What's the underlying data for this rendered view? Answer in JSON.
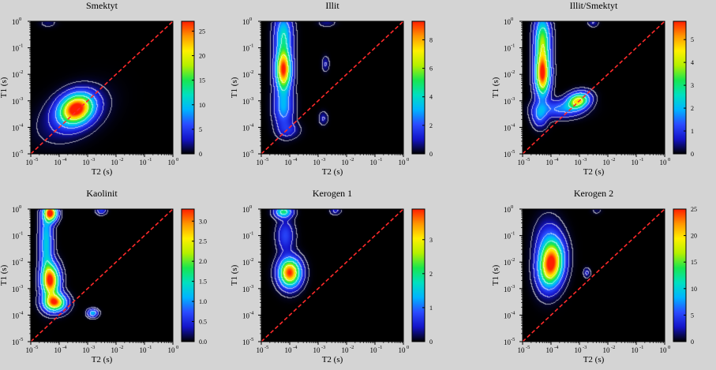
{
  "chart_data": [
    {
      "type": "heatmap",
      "title": "Smektyt",
      "xlabel": "T2 (s)",
      "ylabel": "T1 (s)",
      "x_scale": "log",
      "y_scale": "log",
      "xlim": [
        1e-05,
        1
      ],
      "ylim": [
        1e-05,
        1
      ],
      "x_ticks": [
        "10",
        "10",
        "10",
        "10",
        "10",
        "10"
      ],
      "x_tick_exponents": [
        "-5",
        "-4",
        "-3",
        "-2",
        "-1",
        "0"
      ],
      "y_ticks": [
        "10",
        "10",
        "10",
        "10",
        "10",
        "10"
      ],
      "y_tick_exponents": [
        "-5",
        "-4",
        "-3",
        "-2",
        "-1",
        "0"
      ],
      "colorbar_range": [
        0,
        27
      ],
      "colorbar_ticks": [
        "0",
        "5",
        "10",
        "15",
        "20",
        "25"
      ],
      "colorbar_tick_values": [
        0,
        5,
        10,
        15,
        20,
        25
      ],
      "diagonal_line": "T1 = T2",
      "peaks": [
        {
          "t2": 0.0004,
          "t1": 0.0005,
          "amplitude": 27,
          "spread_t2_decades": 0.38,
          "spread_t1_decades": 0.36,
          "tilt": 0.2
        },
        {
          "t2": 0.0003,
          "t1": 0.0003,
          "amplitude": 4,
          "spread_t2_decades": 0.65,
          "spread_t1_decades": 0.55,
          "tilt": 0.4
        },
        {
          "t2": 4e-05,
          "t1": 0.9,
          "amplitude": 1.5,
          "spread_t2_decades": 0.2,
          "spread_t1_decades": 0.12,
          "tilt": 0
        }
      ]
    },
    {
      "type": "heatmap",
      "title": "Illit",
      "xlabel": "T2 (s)",
      "ylabel": "T1 (s)",
      "x_scale": "log",
      "y_scale": "log",
      "xlim": [
        1e-05,
        1
      ],
      "ylim": [
        1e-05,
        1
      ],
      "x_ticks": [
        "10",
        "10",
        "10",
        "10",
        "10",
        "10"
      ],
      "x_tick_exponents": [
        "-5",
        "-4",
        "-3",
        "-2",
        "-1",
        "0"
      ],
      "y_ticks": [
        "10",
        "10",
        "10",
        "10",
        "10",
        "10"
      ],
      "y_tick_exponents": [
        "-5",
        "-4",
        "-3",
        "-2",
        "-1",
        "0"
      ],
      "colorbar_range": [
        0,
        9.3
      ],
      "colorbar_ticks": [
        "0",
        "2",
        "4",
        "6",
        "8"
      ],
      "colorbar_tick_values": [
        0,
        2,
        4,
        6,
        8
      ],
      "diagonal_line": "T1 = T2",
      "peaks": [
        {
          "t2": 6e-05,
          "t1": 0.015,
          "amplitude": 9.3,
          "spread_t2_decades": 0.18,
          "spread_t1_decades": 0.5,
          "tilt": 0
        },
        {
          "t2": 6e-05,
          "t1": 0.3,
          "amplitude": 4,
          "spread_t2_decades": 0.2,
          "spread_t1_decades": 0.55,
          "tilt": 0
        },
        {
          "t2": 6e-05,
          "t1": 0.0006,
          "amplitude": 3,
          "spread_t2_decades": 0.22,
          "spread_t1_decades": 0.5,
          "tilt": 0
        },
        {
          "t2": 9e-05,
          "t1": 8e-05,
          "amplitude": 1.2,
          "spread_t2_decades": 0.25,
          "spread_t1_decades": 0.2,
          "tilt": 0
        },
        {
          "t2": 0.0018,
          "t1": 0.025,
          "amplitude": 1,
          "spread_t2_decades": 0.08,
          "spread_t1_decades": 0.18,
          "tilt": 0
        },
        {
          "t2": 0.0015,
          "t1": 0.00022,
          "amplitude": 1,
          "spread_t2_decades": 0.1,
          "spread_t1_decades": 0.16,
          "tilt": 0
        },
        {
          "t2": 0.002,
          "t1": 0.9,
          "amplitude": 0.7,
          "spread_t2_decades": 0.2,
          "spread_t1_decades": 0.1,
          "tilt": 0
        }
      ]
    },
    {
      "type": "heatmap",
      "title": "Illit/Smektyt",
      "xlabel": "T2 (s)",
      "ylabel": "T1 (s)",
      "x_scale": "log",
      "y_scale": "log",
      "xlim": [
        1e-05,
        1
      ],
      "ylim": [
        1e-05,
        1
      ],
      "x_ticks": [
        "10",
        "10",
        "10",
        "10",
        "10",
        "10"
      ],
      "x_tick_exponents": [
        "-5",
        "-4",
        "-3",
        "-2",
        "-1",
        "0"
      ],
      "y_ticks": [
        "10",
        "10",
        "10",
        "10",
        "10",
        "10"
      ],
      "y_tick_exponents": [
        "-5",
        "-4",
        "-3",
        "-2",
        "-1",
        "0"
      ],
      "colorbar_range": [
        0,
        5.8
      ],
      "colorbar_ticks": [
        "0",
        "1",
        "2",
        "3",
        "4",
        "5"
      ],
      "colorbar_tick_values": [
        0,
        1,
        2,
        3,
        4,
        5
      ],
      "diagonal_line": "T1 = T2",
      "peaks": [
        {
          "t2": 5e-05,
          "t1": 0.01,
          "amplitude": 5.8,
          "spread_t2_decades": 0.17,
          "spread_t1_decades": 0.55,
          "tilt": 0
        },
        {
          "t2": 5e-05,
          "t1": 0.2,
          "amplitude": 3.5,
          "spread_t2_decades": 0.18,
          "spread_t1_decades": 0.6,
          "tilt": 0
        },
        {
          "t2": 0.0009,
          "t1": 0.001,
          "amplitude": 4.5,
          "spread_t2_decades": 0.25,
          "spread_t1_decades": 0.2,
          "tilt": 0.2
        },
        {
          "t2": 0.0002,
          "t1": 0.0005,
          "amplitude": 1.5,
          "spread_t2_decades": 0.5,
          "spread_t1_decades": 0.22,
          "tilt": 0
        },
        {
          "t2": 4e-05,
          "t1": 0.0003,
          "amplitude": 1.5,
          "spread_t2_decades": 0.18,
          "spread_t1_decades": 0.3,
          "tilt": 0
        },
        {
          "t2": 0.003,
          "t1": 0.9,
          "amplitude": 0.6,
          "spread_t2_decades": 0.12,
          "spread_t1_decades": 0.1,
          "tilt": 0
        }
      ]
    },
    {
      "type": "heatmap",
      "title": "Kaolinit",
      "xlabel": "T2 (s)",
      "ylabel": "T1 (s)",
      "x_scale": "log",
      "y_scale": "log",
      "xlim": [
        1e-05,
        1
      ],
      "ylim": [
        1e-05,
        1
      ],
      "x_ticks": [
        "10",
        "10",
        "10",
        "10",
        "10",
        "10"
      ],
      "x_tick_exponents": [
        "-5",
        "-4",
        "-3",
        "-2",
        "-1",
        "0"
      ],
      "y_ticks": [
        "10",
        "10",
        "10",
        "10",
        "10",
        "10"
      ],
      "y_tick_exponents": [
        "-5",
        "-4",
        "-3",
        "-2",
        "-1",
        "0"
      ],
      "colorbar_range": [
        0,
        3.3
      ],
      "colorbar_ticks": [
        "0.0",
        "0.5",
        "1.0",
        "1.5",
        "2.0",
        "2.5",
        "3.0"
      ],
      "colorbar_tick_values": [
        0,
        0.5,
        1,
        1.5,
        2,
        2.5,
        3
      ],
      "diagonal_line": "T1 = T2",
      "peaks": [
        {
          "t2": 5e-05,
          "t1": 0.7,
          "amplitude": 3.3,
          "spread_t2_decades": 0.15,
          "spread_t1_decades": 0.2,
          "tilt": 0
        },
        {
          "t2": 5e-05,
          "t1": 0.002,
          "amplitude": 3.2,
          "spread_t2_decades": 0.2,
          "spread_t1_decades": 0.4,
          "tilt": 0
        },
        {
          "t2": 7e-05,
          "t1": 0.0003,
          "amplitude": 3.1,
          "spread_t2_decades": 0.25,
          "spread_t1_decades": 0.22,
          "tilt": 0
        },
        {
          "t2": 3.5e-05,
          "t1": 0.05,
          "amplitude": 1.3,
          "spread_t2_decades": 0.15,
          "spread_t1_decades": 1.0,
          "tilt": 0
        },
        {
          "t2": 0.0015,
          "t1": 0.00012,
          "amplitude": 1.2,
          "spread_t2_decades": 0.12,
          "spread_t1_decades": 0.1,
          "tilt": 0
        },
        {
          "t2": 0.003,
          "t1": 0.9,
          "amplitude": 0.6,
          "spread_t2_decades": 0.12,
          "spread_t1_decades": 0.1,
          "tilt": 0
        }
      ]
    },
    {
      "type": "heatmap",
      "title": "Kerogen 1",
      "xlabel": "T2 (s)",
      "ylabel": "T1 (s)",
      "x_scale": "log",
      "y_scale": "log",
      "xlim": [
        1e-05,
        1
      ],
      "ylim": [
        1e-05,
        1
      ],
      "x_ticks": [
        "10",
        "10",
        "10",
        "10",
        "10",
        "10"
      ],
      "x_tick_exponents": [
        "-5",
        "-4",
        "-3",
        "-2",
        "-1",
        "0"
      ],
      "y_ticks": [
        "10",
        "10",
        "10",
        "10",
        "10",
        "10"
      ],
      "y_tick_exponents": [
        "-5",
        "-4",
        "-3",
        "-2",
        "-1",
        "0"
      ],
      "colorbar_range": [
        0,
        3.9
      ],
      "colorbar_ticks": [
        "0",
        "1",
        "2",
        "3"
      ],
      "colorbar_tick_values": [
        0,
        1,
        2,
        3
      ],
      "diagonal_line": "T1 = T2",
      "peaks": [
        {
          "t2": 0.0001,
          "t1": 0.004,
          "amplitude": 3.9,
          "spread_t2_decades": 0.25,
          "spread_t1_decades": 0.35,
          "tilt": 0
        },
        {
          "t2": 6e-05,
          "t1": 0.8,
          "amplitude": 2,
          "spread_t2_decades": 0.2,
          "spread_t1_decades": 0.15,
          "tilt": 0
        },
        {
          "t2": 7e-05,
          "t1": 0.1,
          "amplitude": 0.8,
          "spread_t2_decades": 0.2,
          "spread_t1_decades": 0.4,
          "tilt": 0
        },
        {
          "t2": 0.004,
          "t1": 0.9,
          "amplitude": 0.5,
          "spread_t2_decades": 0.12,
          "spread_t1_decades": 0.1,
          "tilt": 0
        }
      ]
    },
    {
      "type": "heatmap",
      "title": "Kerogen 2",
      "xlabel": "T2 (s)",
      "ylabel": "T1 (s)",
      "x_scale": "log",
      "y_scale": "log",
      "xlim": [
        1e-05,
        1
      ],
      "ylim": [
        1e-05,
        1
      ],
      "x_ticks": [
        "10",
        "10",
        "10",
        "10",
        "10",
        "10"
      ],
      "x_tick_exponents": [
        "-5",
        "-4",
        "-3",
        "-2",
        "-1",
        "0"
      ],
      "y_ticks": [
        "10",
        "10",
        "10",
        "10",
        "10",
        "10"
      ],
      "y_tick_exponents": [
        "-5",
        "-4",
        "-3",
        "-2",
        "-1",
        "0"
      ],
      "colorbar_range": [
        0,
        25
      ],
      "colorbar_ticks": [
        "0",
        "5",
        "10",
        "15",
        "20",
        "25"
      ],
      "colorbar_tick_values": [
        0,
        5,
        10,
        15,
        20,
        25
      ],
      "diagonal_line": "T1 = T2",
      "peaks": [
        {
          "t2": 0.0001,
          "t1": 0.008,
          "amplitude": 25,
          "spread_t2_decades": 0.28,
          "spread_t1_decades": 0.55,
          "tilt": 0.15
        },
        {
          "t2": 8e-05,
          "t1": 0.05,
          "amplitude": 5,
          "spread_t2_decades": 0.3,
          "spread_t1_decades": 0.6,
          "tilt": 0
        },
        {
          "t2": 0.0018,
          "t1": 0.004,
          "amplitude": 3,
          "spread_t2_decades": 0.08,
          "spread_t1_decades": 0.12,
          "tilt": 0
        },
        {
          "t2": 0.004,
          "t1": 0.9,
          "amplitude": 1.2,
          "spread_t2_decades": 0.12,
          "spread_t1_decades": 0.1,
          "tilt": 0
        }
      ]
    }
  ],
  "colors": {
    "page_background": "#d4d4d4",
    "plot_background": "#000000",
    "diagonal_line": "#ff2a2a",
    "contour_lines": "#ffffff",
    "colormap": [
      "#000000",
      "#1414c8",
      "#2a4bff",
      "#00b4ff",
      "#00e0c0",
      "#18e650",
      "#b4f000",
      "#fff000",
      "#ff9600",
      "#ff1e00"
    ]
  }
}
